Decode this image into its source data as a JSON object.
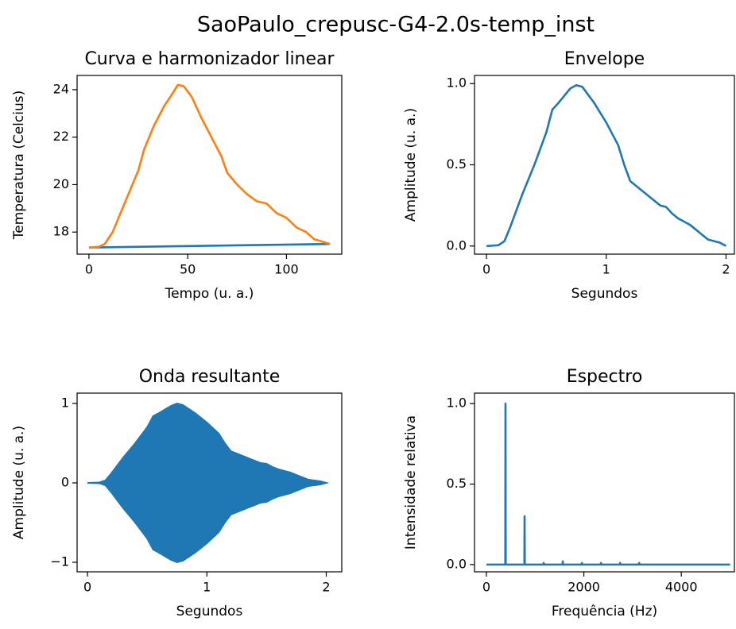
{
  "title": "SaoPaulo_crepusc-G4-2.0s-temp_inst",
  "chart_data": [
    {
      "type": "line",
      "title": "Curva e harmonizador linear",
      "xlabel": "Tempo (u. a.)",
      "ylabel": "Temperatura (Celcius)",
      "xlim": [
        -6,
        128
      ],
      "ylim": [
        17.07,
        24.6
      ],
      "xticks": [
        0,
        50,
        100
      ],
      "yticks": [
        18,
        20,
        22,
        24
      ],
      "series": [
        {
          "color": "#1f77b4",
          "x": [
            0,
            122
          ],
          "values": [
            17.35,
            17.5
          ]
        },
        {
          "color": "#ff7f0e",
          "x": [
            0,
            5,
            8,
            12,
            16,
            20,
            25,
            28,
            33,
            38,
            42,
            45,
            48,
            52,
            57,
            62,
            67,
            70,
            75,
            80,
            85,
            90,
            95,
            100,
            105,
            110,
            114,
            118,
            122
          ],
          "values": [
            17.35,
            17.38,
            17.5,
            18.0,
            18.8,
            19.6,
            20.6,
            21.5,
            22.5,
            23.3,
            23.8,
            24.2,
            24.15,
            23.7,
            22.8,
            22.0,
            21.2,
            20.5,
            20.0,
            19.6,
            19.3,
            19.2,
            18.8,
            18.6,
            18.2,
            18.0,
            17.7,
            17.6,
            17.5
          ]
        }
      ]
    },
    {
      "type": "line",
      "title": "Envelope",
      "xlabel": "Segundos",
      "ylabel": "Amplitude (u. a.)",
      "xlim": [
        -0.1,
        2.07
      ],
      "ylim": [
        -0.05,
        1.05
      ],
      "xticks": [
        0,
        1,
        2
      ],
      "yticks": [
        {
          "value": 0,
          "label": "0.0"
        },
        {
          "value": 0.5,
          "label": "0.5"
        },
        {
          "value": 1,
          "label": "1.0"
        }
      ],
      "series": [
        {
          "color": "#1f77b4",
          "x": [
            0,
            0.1,
            0.15,
            0.2,
            0.3,
            0.4,
            0.5,
            0.55,
            0.6,
            0.7,
            0.75,
            0.8,
            0.9,
            1.0,
            1.1,
            1.15,
            1.2,
            1.3,
            1.4,
            1.45,
            1.5,
            1.55,
            1.6,
            1.7,
            1.75,
            1.8,
            1.85,
            1.9,
            1.95,
            2.0
          ],
          "values": [
            0,
            0.005,
            0.03,
            0.12,
            0.32,
            0.5,
            0.7,
            0.84,
            0.88,
            0.97,
            0.99,
            0.98,
            0.88,
            0.76,
            0.62,
            0.5,
            0.4,
            0.34,
            0.28,
            0.25,
            0.24,
            0.2,
            0.17,
            0.13,
            0.1,
            0.07,
            0.04,
            0.03,
            0.02,
            0
          ]
        }
      ]
    },
    {
      "type": "band",
      "title": "Onda resultante",
      "xlabel": "Segundos",
      "ylabel": "Amplitude (u. a.)",
      "xlim": [
        -0.087,
        2.13
      ],
      "ylim": [
        -1.12,
        1.13
      ],
      "xticks": [
        0,
        1,
        2
      ],
      "yticks": [
        {
          "value": -1,
          "label": "−1"
        },
        0,
        1
      ],
      "color": "#1f77b4",
      "x": [
        0,
        0.1,
        0.15,
        0.2,
        0.3,
        0.4,
        0.5,
        0.55,
        0.6,
        0.7,
        0.75,
        0.8,
        0.9,
        1.0,
        1.1,
        1.15,
        1.2,
        1.3,
        1.4,
        1.45,
        1.5,
        1.55,
        1.6,
        1.7,
        1.75,
        1.8,
        1.85,
        1.9,
        1.95,
        2.0
      ],
      "upper": [
        0,
        0.005,
        0.03,
        0.12,
        0.32,
        0.5,
        0.7,
        0.84,
        0.88,
        0.97,
        1.0,
        0.98,
        0.88,
        0.76,
        0.62,
        0.5,
        0.4,
        0.34,
        0.28,
        0.25,
        0.24,
        0.2,
        0.17,
        0.13,
        0.1,
        0.07,
        0.04,
        0.03,
        0.02,
        0
      ],
      "lower": [
        0,
        -0.005,
        -0.03,
        -0.12,
        -0.32,
        -0.5,
        -0.7,
        -0.84,
        -0.88,
        -0.97,
        -1.0,
        -0.98,
        -0.88,
        -0.76,
        -0.62,
        -0.5,
        -0.4,
        -0.34,
        -0.28,
        -0.25,
        -0.24,
        -0.2,
        -0.17,
        -0.13,
        -0.1,
        -0.07,
        -0.04,
        -0.03,
        -0.02,
        0
      ]
    },
    {
      "type": "line",
      "title": "Espectro",
      "xlabel": "Frequência (Hz)",
      "ylabel": "Intensidade relativa",
      "xlim": [
        -244,
        5090
      ],
      "ylim": [
        -0.045,
        1.065
      ],
      "xticks": [
        0,
        2000,
        4000
      ],
      "yticks": [
        {
          "value": 0,
          "label": "0.0"
        },
        {
          "value": 0.5,
          "label": "0.5"
        },
        {
          "value": 1,
          "label": "1.0"
        }
      ],
      "series": [
        {
          "color": "#1f77b4",
          "x": [
            0,
            388,
            392,
            396,
            780,
            784,
            788,
            1172,
            1176,
            1180,
            1564,
            1568,
            1572,
            1956,
            1960,
            1964,
            2348,
            2352,
            2356,
            2740,
            2744,
            2748,
            3132,
            3136,
            3140,
            5000
          ],
          "values": [
            0,
            0,
            1,
            0,
            0,
            0.3,
            0,
            0,
            0.01,
            0,
            0,
            0.02,
            0,
            0,
            0.01,
            0,
            0,
            0.01,
            0,
            0,
            0.01,
            0,
            0,
            0.01,
            0,
            0
          ]
        }
      ]
    }
  ]
}
